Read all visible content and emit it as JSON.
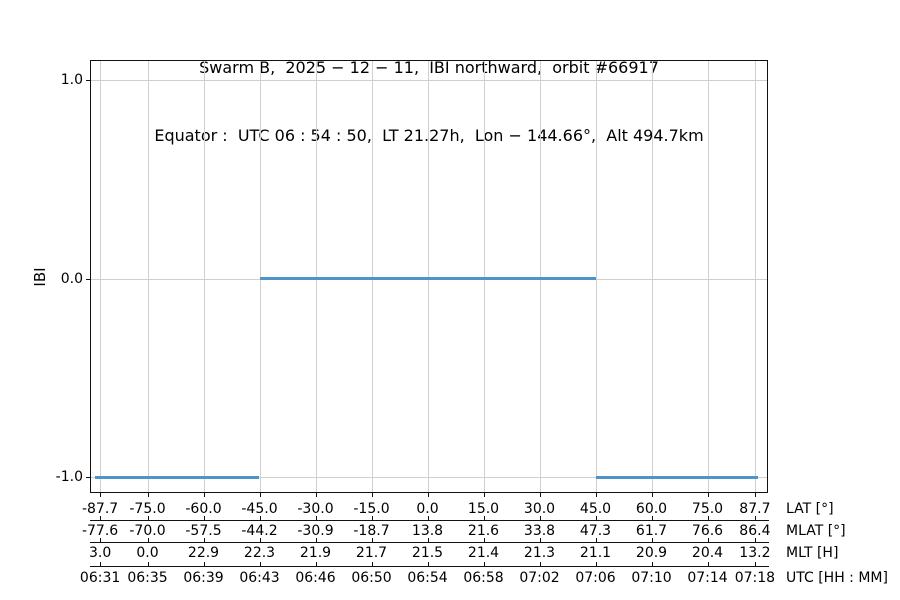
{
  "chart_data": {
    "type": "line",
    "title": "Swarm B,  2025 − 12 − 11,  IBI northward,  orbit #66917",
    "subtitle": "Equator :  UTC 06 : 54 : 50,  LT 21.27h,  Lon − 144.66°,  Alt 494.7km",
    "ylabel": "IBI",
    "grid": true,
    "legend": "none",
    "line_color": "#4e94c8",
    "grid_color": "#d0d0d0",
    "xlim": [
      -90.4,
      91.2
    ],
    "ylim": [
      -1.08,
      1.1
    ],
    "y_ticks": [
      {
        "label": "1.0",
        "value": 1.0
      },
      {
        "label": "0.0",
        "value": 0.0
      },
      {
        "label": "-1.0",
        "value": -1.0
      }
    ],
    "x_tick_lats": [
      -87.7,
      -75.0,
      -60.0,
      -45.0,
      -30.0,
      -15.0,
      0.0,
      15.0,
      30.0,
      45.0,
      60.0,
      75.0,
      87.7
    ],
    "axis_rows": [
      {
        "label": "LAT [°]",
        "ticks": [
          "-87.7",
          "-75.0",
          "-60.0",
          "-45.0",
          "-30.0",
          "-15.0",
          "0.0",
          "15.0",
          "30.0",
          "45.0",
          "60.0",
          "75.0",
          "87.7"
        ]
      },
      {
        "label": "MLAT [°]",
        "ticks": [
          "-77.6",
          "-70.0",
          "-57.5",
          "-44.2",
          "-30.9",
          "-18.7",
          "13.8",
          "21.6",
          "33.8",
          "47.3",
          "61.7",
          "76.6",
          "86.4"
        ]
      },
      {
        "label": "MLT [H]",
        "ticks": [
          "3.0",
          "0.0",
          "22.9",
          "22.3",
          "21.9",
          "21.7",
          "21.5",
          "21.4",
          "21.3",
          "21.1",
          "20.9",
          "20.4",
          "13.2"
        ]
      },
      {
        "label": "UTC [HH : MM]",
        "ticks": [
          "06:31",
          "06:35",
          "06:39",
          "06:43",
          "06:46",
          "06:50",
          "06:54",
          "06:58",
          "07:02",
          "07:06",
          "07:10",
          "07:14",
          "07:18"
        ]
      }
    ],
    "series": [
      {
        "name": "IBI",
        "segments": [
          {
            "value": -1.0,
            "lat_from": -89.0,
            "lat_to": -45.0
          },
          {
            "value": 0.0,
            "lat_from": -45.0,
            "lat_to": 45.0
          },
          {
            "value": -1.0,
            "lat_from": 45.0,
            "lat_to": 88.5
          }
        ]
      }
    ]
  }
}
